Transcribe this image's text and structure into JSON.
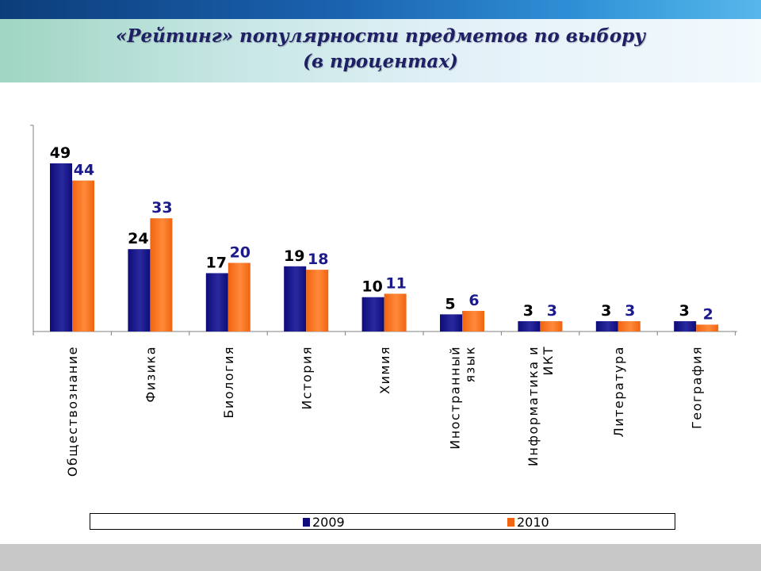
{
  "title": {
    "line1": "«Рейтинг» популярности предметов по выбору",
    "line2": "(в процентах)"
  },
  "colors": {
    "series_2009": "#0d0c78",
    "series_2010": "#f06410",
    "label_2010": "#1a1a8c",
    "label_2009": "#000000",
    "axis": "#808080"
  },
  "chart_data": {
    "type": "bar",
    "categories": [
      "Обществознание",
      "Физика",
      "Биология",
      "История",
      "Химия",
      "Иностранный язык",
      "Информатика и ИКТ",
      "Литература",
      "География"
    ],
    "category_lines": [
      [
        "Обществознание"
      ],
      [
        "Физика"
      ],
      [
        "Биология"
      ],
      [
        "История"
      ],
      [
        "Химия"
      ],
      [
        "Иностранный",
        "язык"
      ],
      [
        "Информатика и",
        "ИКТ"
      ],
      [
        "Литература"
      ],
      [
        "География"
      ]
    ],
    "series": [
      {
        "name": "2009",
        "values": [
          49,
          24,
          17,
          19,
          10,
          5,
          3,
          3,
          3
        ]
      },
      {
        "name": "2010",
        "values": [
          44,
          33,
          20,
          18,
          11,
          6,
          3,
          3,
          2
        ]
      }
    ],
    "ylim": [
      0,
      49
    ],
    "grid": false,
    "legend_position": "bottom",
    "data_labels": true
  },
  "legend": {
    "items": [
      "2009",
      "2010"
    ]
  }
}
